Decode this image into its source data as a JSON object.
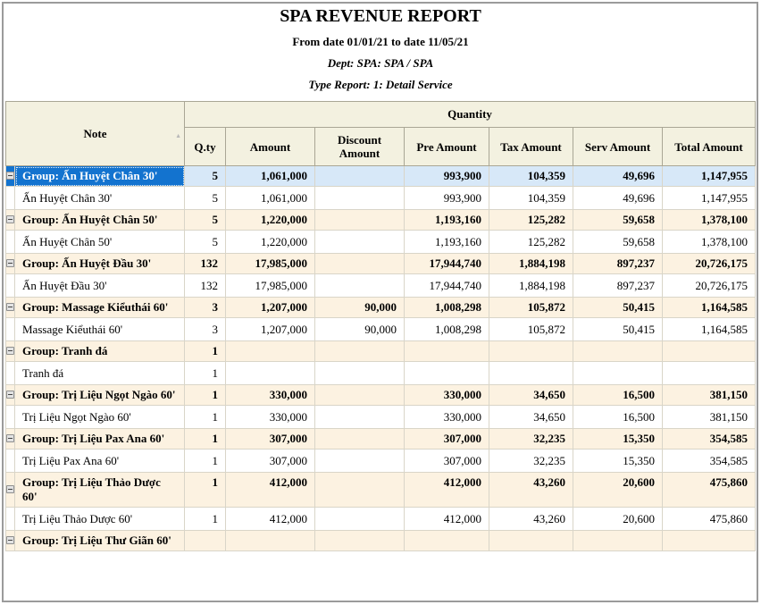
{
  "report": {
    "title": "SPA REVENUE REPORT",
    "date_range": "From date 01/01/21 to date 11/05/21",
    "dept": "Dept: SPA: SPA / SPA",
    "type_report": "Type Report: 1: Detail Service"
  },
  "table": {
    "note_header": "Note",
    "quantity_header": "Quantity",
    "sort_icon": "▲",
    "columns": [
      "Q.ty",
      "Amount",
      "Discount Amount",
      "Pre Amount",
      "Tax Amount",
      "Serv Amount",
      "Total Amount"
    ],
    "colors": {
      "selected_row_bg": "#1373cf",
      "selected_cells_bg": "#d7e8f8",
      "group_row_bg": "#fcf2e1",
      "header_bg": "#f3f1e0"
    },
    "rows": [
      {
        "type": "group",
        "selected": true,
        "note": "Group: Ấn Huyệt Chân 30'",
        "values": [
          "5",
          "1,061,000",
          "",
          "993,900",
          "104,359",
          "49,696",
          "1,147,955"
        ]
      },
      {
        "type": "detail",
        "note": "Ấn Huyệt Chân 30'",
        "values": [
          "5",
          "1,061,000",
          "",
          "993,900",
          "104,359",
          "49,696",
          "1,147,955"
        ]
      },
      {
        "type": "group",
        "note": "Group: Ấn Huyệt Chân 50'",
        "values": [
          "5",
          "1,220,000",
          "",
          "1,193,160",
          "125,282",
          "59,658",
          "1,378,100"
        ]
      },
      {
        "type": "detail",
        "note": "Ấn Huyệt Chân 50'",
        "values": [
          "5",
          "1,220,000",
          "",
          "1,193,160",
          "125,282",
          "59,658",
          "1,378,100"
        ]
      },
      {
        "type": "group",
        "note": "Group: Ấn Huyệt Đầu 30'",
        "values": [
          "132",
          "17,985,000",
          "",
          "17,944,740",
          "1,884,198",
          "897,237",
          "20,726,175"
        ]
      },
      {
        "type": "detail",
        "note": "Ấn Huyệt Đầu 30'",
        "values": [
          "132",
          "17,985,000",
          "",
          "17,944,740",
          "1,884,198",
          "897,237",
          "20,726,175"
        ]
      },
      {
        "type": "group",
        "note": "Group: Massage Kiểuthái 60'",
        "values": [
          "3",
          "1,207,000",
          "90,000",
          "1,008,298",
          "105,872",
          "50,415",
          "1,164,585"
        ]
      },
      {
        "type": "detail",
        "note": "Massage Kiểuthái 60'",
        "values": [
          "3",
          "1,207,000",
          "90,000",
          "1,008,298",
          "105,872",
          "50,415",
          "1,164,585"
        ]
      },
      {
        "type": "group",
        "note": "Group: Tranh đá",
        "values": [
          "1",
          "",
          "",
          "",
          "",
          "",
          ""
        ]
      },
      {
        "type": "detail",
        "note": "Tranh đá",
        "values": [
          "1",
          "",
          "",
          "",
          "",
          "",
          ""
        ]
      },
      {
        "type": "group",
        "note": "Group: Trị Liệu Ngọt Ngào 60'",
        "values": [
          "1",
          "330,000",
          "",
          "330,000",
          "34,650",
          "16,500",
          "381,150"
        ]
      },
      {
        "type": "detail",
        "note": "Trị Liệu Ngọt Ngào 60'",
        "values": [
          "1",
          "330,000",
          "",
          "330,000",
          "34,650",
          "16,500",
          "381,150"
        ]
      },
      {
        "type": "group",
        "note": "Group: Trị Liệu Pax Ana 60'",
        "values": [
          "1",
          "307,000",
          "",
          "307,000",
          "32,235",
          "15,350",
          "354,585"
        ]
      },
      {
        "type": "detail",
        "note": "Trị Liệu Pax Ana 60'",
        "values": [
          "1",
          "307,000",
          "",
          "307,000",
          "32,235",
          "15,350",
          "354,585"
        ]
      },
      {
        "type": "group",
        "note": "Group: Trị Liệu Thảo Dược 60'",
        "values": [
          "1",
          "412,000",
          "",
          "412,000",
          "43,260",
          "20,600",
          "475,860"
        ]
      },
      {
        "type": "detail",
        "note": "Trị Liệu Thảo Dược 60'",
        "values": [
          "1",
          "412,000",
          "",
          "412,000",
          "43,260",
          "20,600",
          "475,860"
        ]
      },
      {
        "type": "group",
        "note": "Group: Trị Liệu Thư Giãn 60'",
        "values": [
          "",
          "",
          "",
          "",
          "",
          "",
          ""
        ]
      }
    ]
  }
}
